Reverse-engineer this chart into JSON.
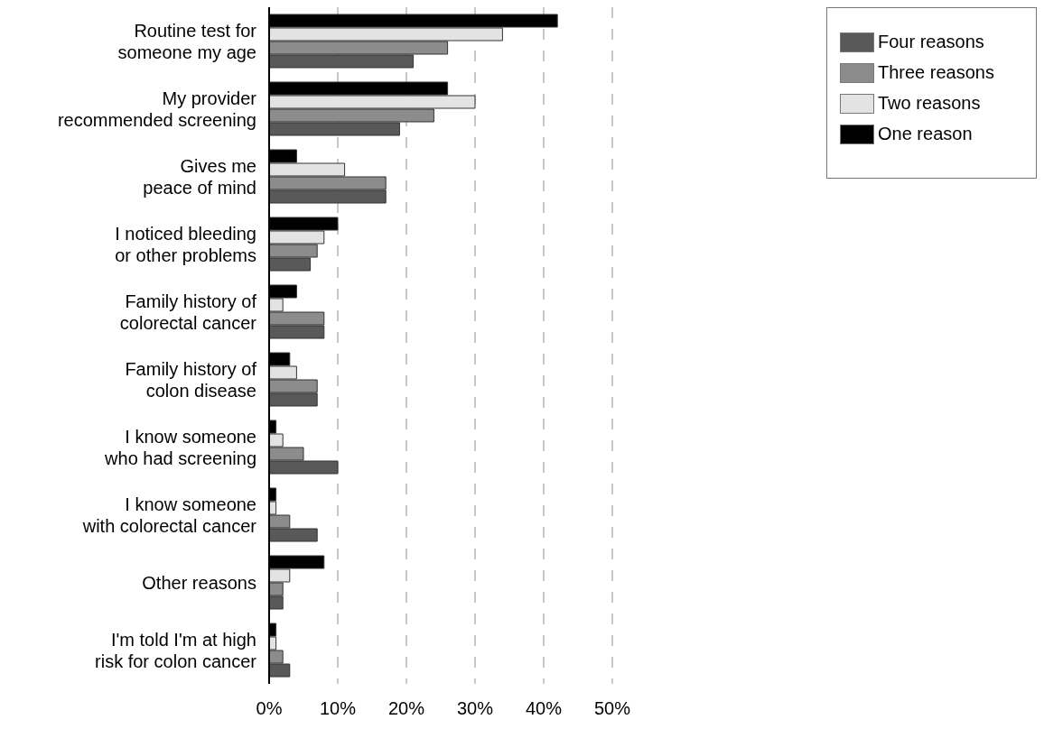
{
  "chart_data": {
    "type": "bar",
    "orientation": "horizontal",
    "categories": [
      "Routine test for\nsomeone my age",
      "My provider\nrecommended screening",
      "Gives me\npeace of mind",
      "I noticed bleeding\nor other problems",
      "Family history of\ncolorectal cancer",
      "Family history of\ncolon disease",
      "I know someone\nwho had screening",
      "I know someone\nwith colorectal cancer",
      "Other reasons",
      "I'm told I'm at high\nrisk for colon cancer"
    ],
    "series": [
      {
        "name": "One reason",
        "color": "#000000",
        "values": [
          42,
          26,
          4,
          10,
          4,
          3,
          1,
          1,
          8,
          1
        ]
      },
      {
        "name": "Two reasons",
        "color": "#e3e3e3",
        "values": [
          34,
          30,
          11,
          8,
          2,
          4,
          2,
          1,
          3,
          1
        ]
      },
      {
        "name": "Three reasons",
        "color": "#8c8c8c",
        "values": [
          26,
          24,
          17,
          7,
          8,
          7,
          5,
          3,
          2,
          2
        ]
      },
      {
        "name": "Four reasons",
        "color": "#595959",
        "values": [
          21,
          19,
          17,
          6,
          8,
          7,
          10,
          7,
          2,
          3
        ]
      }
    ],
    "xlim": [
      0,
      50
    ],
    "xticks": [
      {
        "value": 0,
        "label": "0%"
      },
      {
        "value": 10,
        "label": "10%"
      },
      {
        "value": 20,
        "label": "20%"
      },
      {
        "value": 30,
        "label": "30%"
      },
      {
        "value": 40,
        "label": "40%"
      },
      {
        "value": 50,
        "label": "50%"
      }
    ],
    "grid": "x",
    "legend": "top right"
  }
}
